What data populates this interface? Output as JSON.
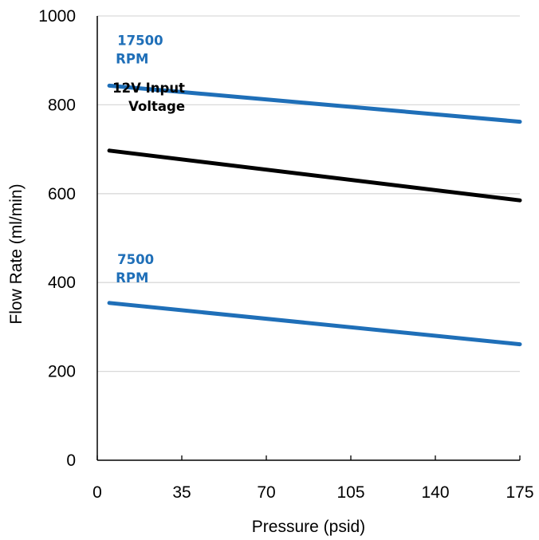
{
  "chart_data": {
    "type": "line",
    "title": "",
    "xlabel": "Pressure (psid)",
    "ylabel": "Flow Rate (ml/min)",
    "xlim": [
      0,
      175
    ],
    "ylim": [
      0,
      1000
    ],
    "xticks": [
      0,
      35,
      70,
      105,
      140,
      175
    ],
    "yticks": [
      0,
      200,
      400,
      600,
      800,
      1000
    ],
    "grid": "horizontal",
    "legend": "none",
    "series": [
      {
        "name": "17500 RPM",
        "label_lines": [
          "17500",
          "RPM"
        ],
        "color": "#1f6fb8",
        "x": [
          5,
          175
        ],
        "y": [
          843,
          762
        ]
      },
      {
        "name": "12V Input Voltage",
        "label_lines": [
          "12V Input",
          "Voltage"
        ],
        "color": "#000000",
        "x": [
          5,
          175
        ],
        "y": [
          697,
          585
        ]
      },
      {
        "name": "7500 RPM",
        "label_lines": [
          "7500",
          "RPM"
        ],
        "color": "#1f6fb8",
        "x": [
          5,
          175
        ],
        "y": [
          354,
          261
        ]
      }
    ]
  }
}
